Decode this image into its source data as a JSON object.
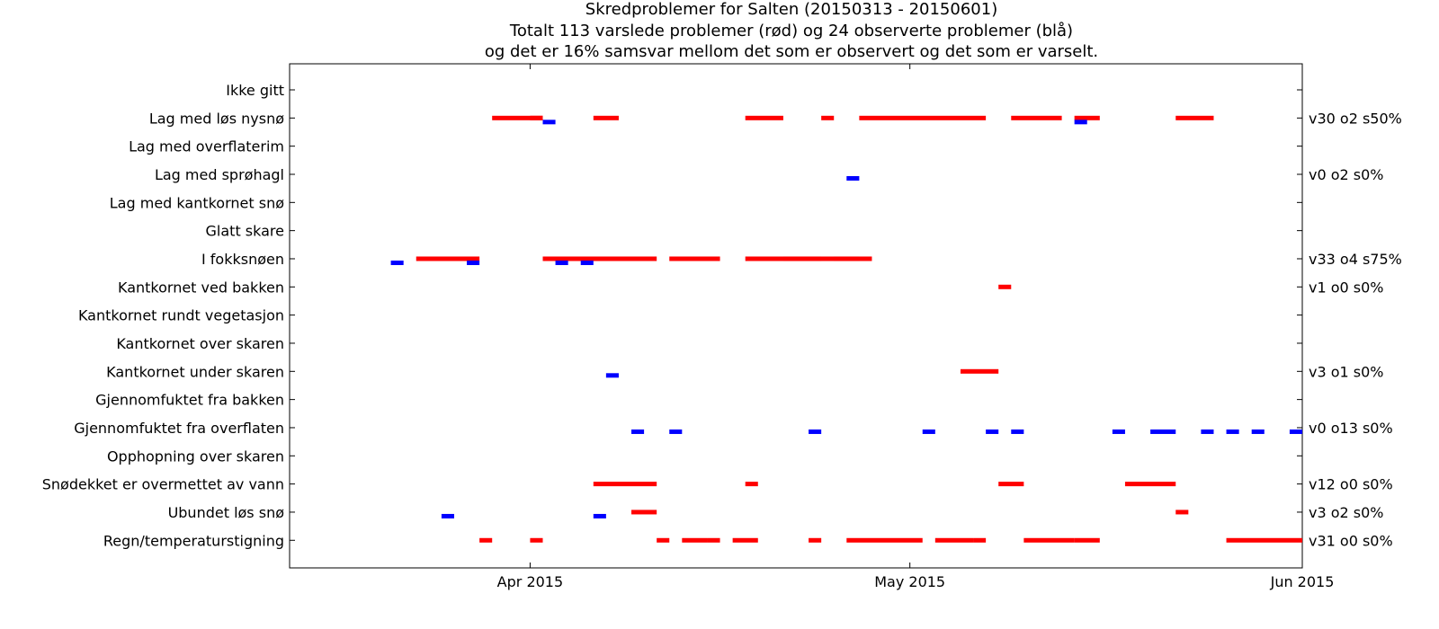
{
  "chart_data": {
    "type": "timeline",
    "title_lines": [
      "Skredproblemer for Salten (20150313 - 20150601)",
      "Totalt 113 varslede problemer (rød) og 24 observerte problemer (blå)",
      "og det er 16% samsvar mellom det som er observert og det som er varselt."
    ],
    "x_range": [
      "2015-03-13",
      "2015-06-01"
    ],
    "x_ticks": [
      {
        "date": "2015-04-01",
        "label": "Apr 2015"
      },
      {
        "date": "2015-05-01",
        "label": "May 2015"
      },
      {
        "date": "2015-06-01",
        "label": "Jun 2015"
      }
    ],
    "colors": {
      "forecast": "#ff0000",
      "observed": "#0000ff"
    },
    "categories": [
      {
        "name": "Ikke gitt",
        "stat": "",
        "forecast": [],
        "observed": []
      },
      {
        "name": "Lag med løs nysnø",
        "stat": "v30 o2 s50%",
        "forecast": [
          [
            "2015-03-29",
            "2015-04-02"
          ],
          [
            "2015-04-01",
            "2015-04-02"
          ],
          [
            "2015-04-06",
            "2015-04-08"
          ],
          [
            "2015-04-18",
            "2015-04-21"
          ],
          [
            "2015-04-24",
            "2015-04-25"
          ],
          [
            "2015-04-27",
            "2015-05-07"
          ],
          [
            "2015-05-09",
            "2015-05-13"
          ],
          [
            "2015-05-14",
            "2015-05-16"
          ],
          [
            "2015-05-22",
            "2015-05-25"
          ]
        ],
        "observed": [
          [
            "2015-04-02",
            "2015-04-03"
          ],
          [
            "2015-05-14",
            "2015-05-15"
          ]
        ]
      },
      {
        "name": "Lag med overflaterim",
        "stat": "",
        "forecast": [],
        "observed": []
      },
      {
        "name": "Lag med sprøhagl",
        "stat": "v0 o2 s0%",
        "forecast": [],
        "observed": [
          [
            "2015-04-26",
            "2015-04-27"
          ]
        ]
      },
      {
        "name": "Lag med kantkornet snø",
        "stat": "",
        "forecast": [],
        "observed": []
      },
      {
        "name": "Glatt skare",
        "stat": "",
        "forecast": [],
        "observed": []
      },
      {
        "name": "I fokksnøen",
        "stat": "v33 o4 s75%",
        "forecast": [
          [
            "2015-03-23",
            "2015-03-28"
          ],
          [
            "2015-04-02",
            "2015-04-11"
          ],
          [
            "2015-04-12",
            "2015-04-16"
          ],
          [
            "2015-04-18",
            "2015-04-28"
          ],
          [
            "2015-04-21",
            "2015-04-24"
          ],
          [
            "2015-04-25",
            "2015-04-27"
          ]
        ],
        "observed": [
          [
            "2015-03-21",
            "2015-03-22"
          ],
          [
            "2015-03-27",
            "2015-03-28"
          ],
          [
            "2015-04-03",
            "2015-04-04"
          ],
          [
            "2015-04-05",
            "2015-04-06"
          ]
        ]
      },
      {
        "name": "Kantkornet ved bakken",
        "stat": "v1 o0 s0%",
        "forecast": [
          [
            "2015-05-08",
            "2015-05-09"
          ]
        ],
        "observed": []
      },
      {
        "name": "Kantkornet rundt vegetasjon",
        "stat": "",
        "forecast": [],
        "observed": []
      },
      {
        "name": "Kantkornet over skaren",
        "stat": "",
        "forecast": [],
        "observed": []
      },
      {
        "name": "Kantkornet under skaren",
        "stat": "v3 o1 s0%",
        "forecast": [
          [
            "2015-05-05",
            "2015-05-08"
          ]
        ],
        "observed": [
          [
            "2015-04-07",
            "2015-04-08"
          ]
        ]
      },
      {
        "name": "Gjennomfuktet fra bakken",
        "stat": "",
        "forecast": [],
        "observed": []
      },
      {
        "name": "Gjennomfuktet fra overflaten",
        "stat": "v0 o13 s0%",
        "forecast": [],
        "observed": [
          [
            "2015-04-09",
            "2015-04-10"
          ],
          [
            "2015-04-12",
            "2015-04-13"
          ],
          [
            "2015-04-23",
            "2015-04-24"
          ],
          [
            "2015-05-02",
            "2015-05-03"
          ],
          [
            "2015-05-07",
            "2015-05-08"
          ],
          [
            "2015-05-09",
            "2015-05-10"
          ],
          [
            "2015-05-17",
            "2015-05-18"
          ],
          [
            "2015-05-20",
            "2015-05-22"
          ],
          [
            "2015-05-24",
            "2015-05-25"
          ],
          [
            "2015-05-26",
            "2015-05-27"
          ],
          [
            "2015-05-28",
            "2015-05-29"
          ],
          [
            "2015-05-31",
            "2015-06-01"
          ]
        ]
      },
      {
        "name": "Opphopning over skaren",
        "stat": "",
        "forecast": [],
        "observed": []
      },
      {
        "name": "Snødekket er overmettet av vann",
        "stat": "v12 o0 s0%",
        "forecast": [
          [
            "2015-04-06",
            "2015-04-11"
          ],
          [
            "2015-04-18",
            "2015-04-19"
          ],
          [
            "2015-05-08",
            "2015-05-10"
          ],
          [
            "2015-05-18",
            "2015-05-22"
          ]
        ],
        "observed": []
      },
      {
        "name": "Ubundet løs snø",
        "stat": "v3 o2 s0%",
        "forecast": [
          [
            "2015-04-09",
            "2015-04-11"
          ],
          [
            "2015-05-22",
            "2015-05-23"
          ]
        ],
        "observed": [
          [
            "2015-03-25",
            "2015-03-26"
          ],
          [
            "2015-04-06",
            "2015-04-07"
          ]
        ]
      },
      {
        "name": "Regn/temperaturstigning",
        "stat": "v31 o0 s0%",
        "forecast": [
          [
            "2015-03-28",
            "2015-03-29"
          ],
          [
            "2015-04-01",
            "2015-04-02"
          ],
          [
            "2015-04-13",
            "2015-04-15"
          ],
          [
            "2015-04-11",
            "2015-04-12"
          ],
          [
            "2015-04-15",
            "2015-04-16"
          ],
          [
            "2015-04-17",
            "2015-04-19"
          ],
          [
            "2015-04-23",
            "2015-04-24"
          ],
          [
            "2015-04-26",
            "2015-05-02"
          ],
          [
            "2015-05-03",
            "2015-05-06"
          ],
          [
            "2015-05-06",
            "2015-05-07"
          ],
          [
            "2015-05-10",
            "2015-05-14"
          ],
          [
            "2015-05-14",
            "2015-05-16"
          ],
          [
            "2015-05-26",
            "2015-06-01"
          ]
        ],
        "observed": []
      }
    ]
  }
}
